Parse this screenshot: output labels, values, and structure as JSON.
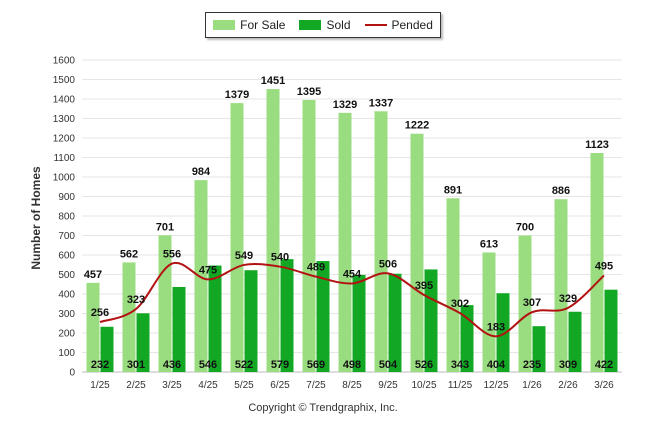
{
  "legend": {
    "for_sale": "For Sale",
    "sold": "Sold",
    "pended": "Pended"
  },
  "copyright": "Copyright © Trendgraphix, Inc.",
  "colors": {
    "for_sale": "#9ADD80",
    "sold": "#12A823",
    "pended": "#B31212"
  },
  "chart_data": {
    "type": "bar",
    "ylabel": "Number of Homes",
    "ylim": [
      0,
      1600
    ],
    "yticks": [
      0,
      100,
      200,
      300,
      400,
      500,
      600,
      700,
      800,
      900,
      1000,
      1100,
      1200,
      1300,
      1400,
      1500,
      1600
    ],
    "categories": [
      "1/25",
      "2/25",
      "3/25",
      "4/25",
      "5/25",
      "6/25",
      "7/25",
      "8/25",
      "9/25",
      "10/25",
      "11/25",
      "12/25",
      "1/26",
      "2/26",
      "3/26"
    ],
    "grid": true,
    "legend_position": "top-center",
    "series": [
      {
        "name": "For Sale",
        "kind": "bar",
        "values": [
          457,
          562,
          701,
          984,
          1379,
          1451,
          1395,
          1329,
          1337,
          1222,
          891,
          613,
          700,
          886,
          1123
        ]
      },
      {
        "name": "Sold",
        "kind": "bar",
        "values": [
          232,
          301,
          436,
          546,
          522,
          579,
          569,
          498,
          504,
          526,
          343,
          404,
          235,
          309,
          422
        ]
      },
      {
        "name": "Pended",
        "kind": "line",
        "values": [
          256,
          323,
          556,
          475,
          549,
          540,
          489,
          454,
          506,
          395,
          302,
          183,
          307,
          329,
          495
        ]
      }
    ]
  }
}
